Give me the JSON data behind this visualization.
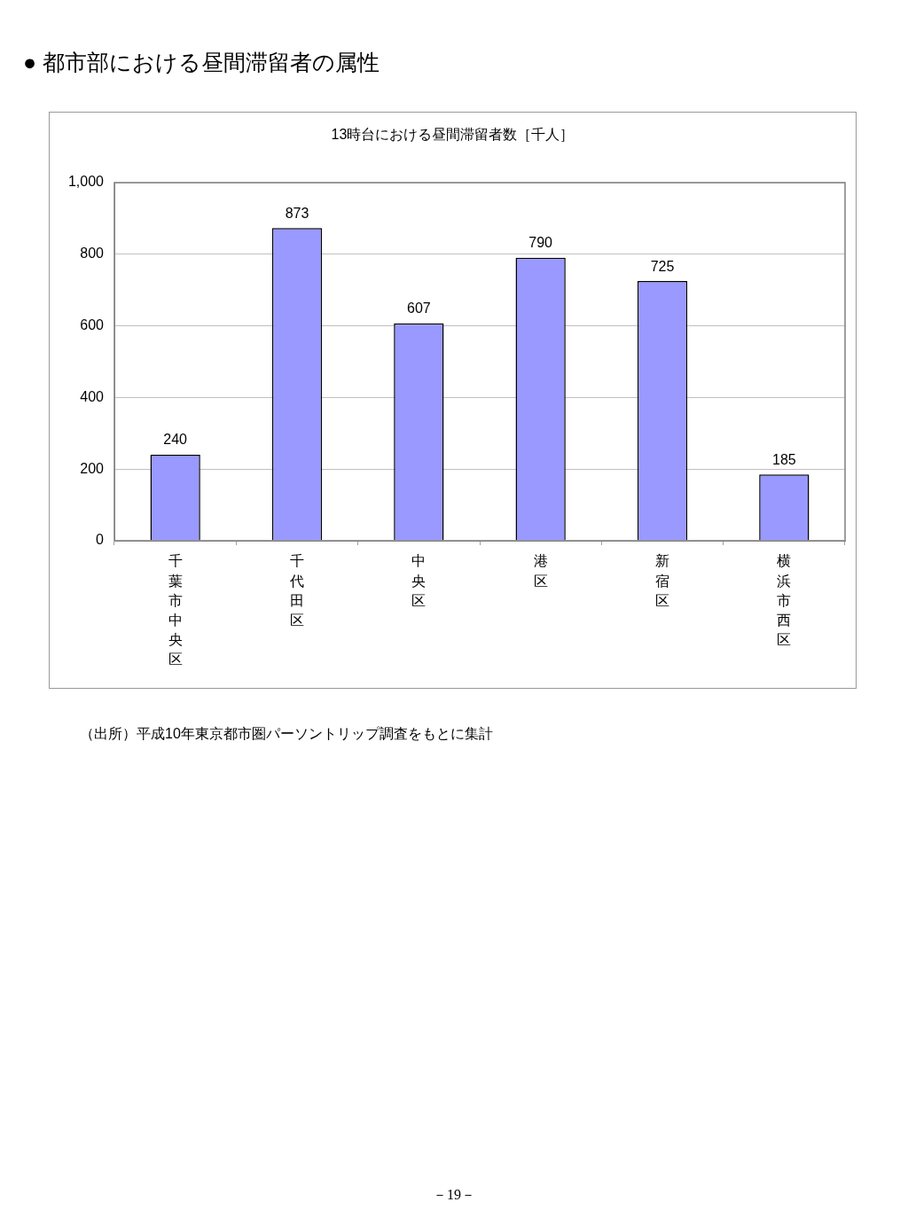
{
  "chart_data": {
    "type": "bar",
    "title": "● 都市部における昼間滞留者の属性",
    "subtitle": "13時台における昼間滞留者数［千人］",
    "categories": [
      "千葉市中央区",
      "千代田区",
      "中央区",
      "港区",
      "新宿区",
      "横浜市西区"
    ],
    "values": [
      240,
      873,
      607,
      790,
      725,
      185
    ],
    "color": "#9999ff",
    "ylim": [
      0,
      1000
    ],
    "yticks": [
      0,
      200,
      400,
      600,
      800,
      {
        "value": 1000,
        "label": "1,000"
      }
    ],
    "grid": "y",
    "data_labels": true,
    "annotations": [
      "（出所）平成10年東京都市圏パーソントリップ調査をもとに集計",
      "－19－"
    ]
  }
}
